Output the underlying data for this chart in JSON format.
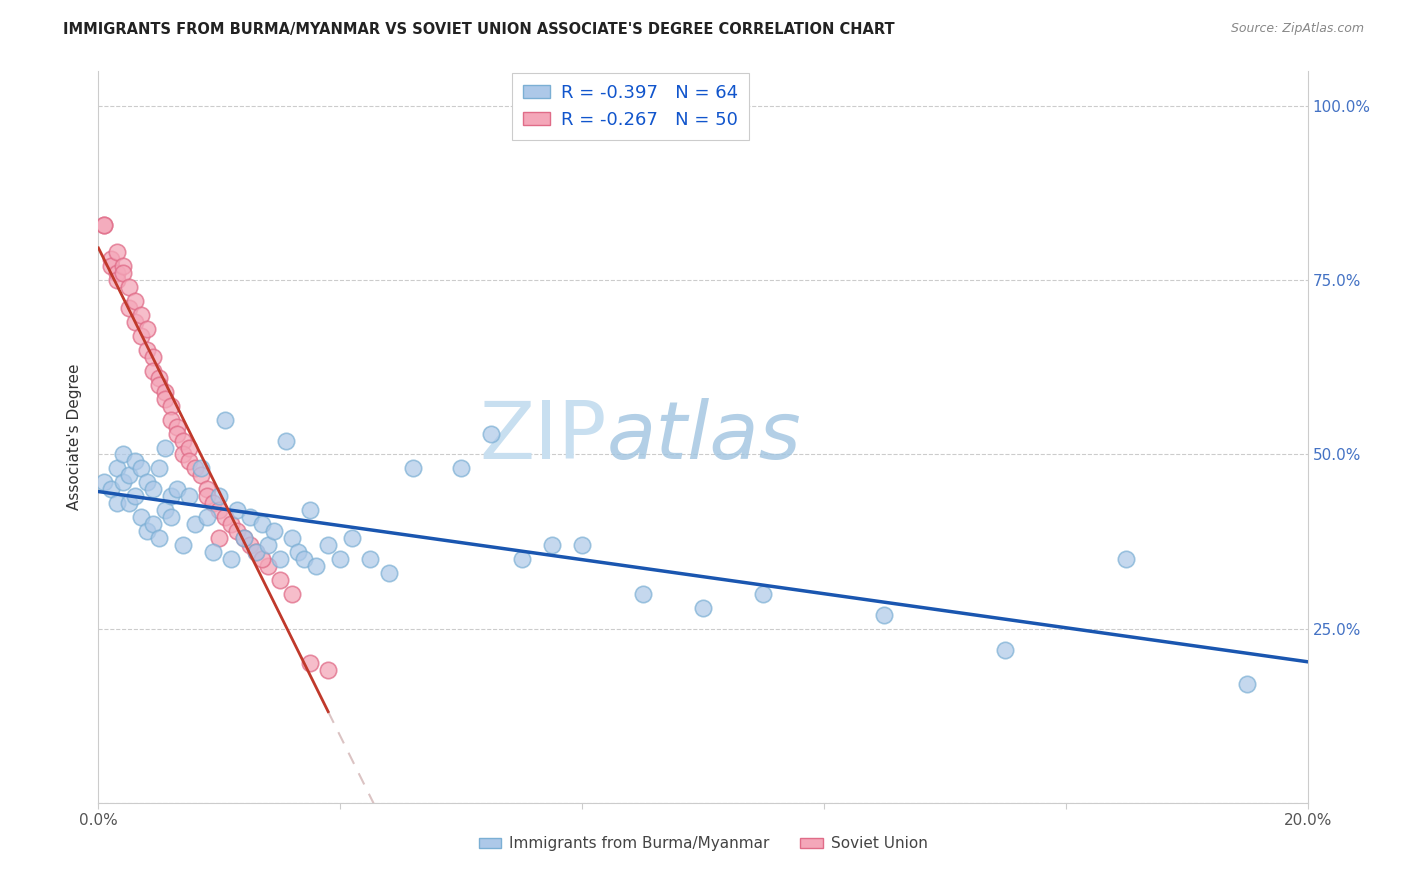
{
  "title": "IMMIGRANTS FROM BURMA/MYANMAR VS SOVIET UNION ASSOCIATE'S DEGREE CORRELATION CHART",
  "source": "Source: ZipAtlas.com",
  "ylabel": "Associate's Degree",
  "legend_label1": "R = -0.397   N = 64",
  "legend_label2": "R = -0.267   N = 50",
  "legend_series1": "Immigrants from Burma/Myanmar",
  "legend_series2": "Soviet Union",
  "blue_face": "#adc8e8",
  "blue_edge": "#7bafd4",
  "pink_face": "#f4a7b9",
  "pink_edge": "#e06c88",
  "trendline_blue": "#1a56b0",
  "trendline_pink": "#c0392b",
  "trendline_gray": "#ccaaaa",
  "blue_x": [
    0.001,
    0.002,
    0.003,
    0.003,
    0.004,
    0.004,
    0.005,
    0.005,
    0.006,
    0.006,
    0.007,
    0.007,
    0.008,
    0.008,
    0.009,
    0.009,
    0.01,
    0.01,
    0.011,
    0.011,
    0.012,
    0.012,
    0.013,
    0.014,
    0.015,
    0.016,
    0.017,
    0.018,
    0.019,
    0.02,
    0.021,
    0.022,
    0.023,
    0.024,
    0.025,
    0.026,
    0.027,
    0.028,
    0.029,
    0.03,
    0.031,
    0.032,
    0.033,
    0.034,
    0.035,
    0.036,
    0.038,
    0.04,
    0.042,
    0.045,
    0.048,
    0.052,
    0.06,
    0.065,
    0.07,
    0.075,
    0.08,
    0.09,
    0.1,
    0.11,
    0.13,
    0.15,
    0.17,
    0.19
  ],
  "blue_y": [
    0.46,
    0.45,
    0.48,
    0.43,
    0.5,
    0.46,
    0.47,
    0.43,
    0.49,
    0.44,
    0.48,
    0.41,
    0.46,
    0.39,
    0.45,
    0.4,
    0.48,
    0.38,
    0.51,
    0.42,
    0.44,
    0.41,
    0.45,
    0.37,
    0.44,
    0.4,
    0.48,
    0.41,
    0.36,
    0.44,
    0.55,
    0.35,
    0.42,
    0.38,
    0.41,
    0.36,
    0.4,
    0.37,
    0.39,
    0.35,
    0.52,
    0.38,
    0.36,
    0.35,
    0.42,
    0.34,
    0.37,
    0.35,
    0.38,
    0.35,
    0.33,
    0.48,
    0.48,
    0.53,
    0.35,
    0.37,
    0.37,
    0.3,
    0.28,
    0.3,
    0.27,
    0.22,
    0.35,
    0.17
  ],
  "pink_x": [
    0.001,
    0.001,
    0.002,
    0.002,
    0.003,
    0.003,
    0.003,
    0.004,
    0.004,
    0.005,
    0.005,
    0.006,
    0.006,
    0.007,
    0.007,
    0.008,
    0.008,
    0.009,
    0.009,
    0.01,
    0.01,
    0.011,
    0.011,
    0.012,
    0.012,
    0.013,
    0.013,
    0.014,
    0.014,
    0.015,
    0.015,
    0.016,
    0.017,
    0.018,
    0.018,
    0.019,
    0.02,
    0.021,
    0.022,
    0.023,
    0.024,
    0.025,
    0.026,
    0.028,
    0.03,
    0.032,
    0.035,
    0.038,
    0.027,
    0.02
  ],
  "pink_y": [
    0.83,
    0.83,
    0.78,
    0.77,
    0.79,
    0.76,
    0.75,
    0.77,
    0.76,
    0.74,
    0.71,
    0.72,
    0.69,
    0.7,
    0.67,
    0.68,
    0.65,
    0.64,
    0.62,
    0.61,
    0.6,
    0.59,
    0.58,
    0.57,
    0.55,
    0.54,
    0.53,
    0.52,
    0.5,
    0.51,
    0.49,
    0.48,
    0.47,
    0.45,
    0.44,
    0.43,
    0.42,
    0.41,
    0.4,
    0.39,
    0.38,
    0.37,
    0.36,
    0.34,
    0.32,
    0.3,
    0.2,
    0.19,
    0.35,
    0.38
  ],
  "xlim": [
    0.0,
    0.2
  ],
  "ylim": [
    0.0,
    1.05
  ],
  "xticks": [
    0.0,
    0.04,
    0.08,
    0.12,
    0.16,
    0.2
  ],
  "xticklabels": [
    "0.0%",
    "",
    "",
    "",
    "",
    "20.0%"
  ],
  "yticks_right": [
    0.25,
    0.5,
    0.75,
    1.0
  ],
  "yticklabels_right": [
    "25.0%",
    "50.0%",
    "75.0%",
    "100.0%"
  ]
}
